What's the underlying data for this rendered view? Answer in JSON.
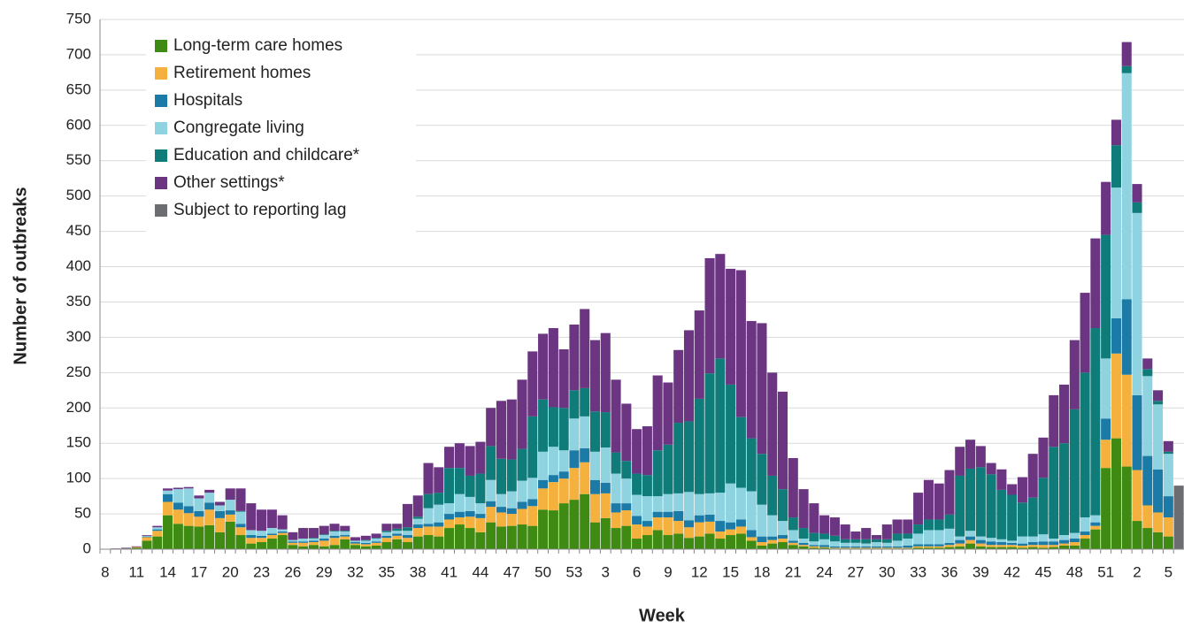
{
  "chart_data": {
    "type": "stacked_bar",
    "x_label": "Week",
    "y_label": "Number of outbreaks",
    "ylim": [
      0,
      750
    ],
    "yticks": [
      0,
      50,
      100,
      150,
      200,
      250,
      300,
      350,
      400,
      450,
      500,
      550,
      600,
      650,
      700,
      750
    ],
    "grid": true,
    "legend": "top-left",
    "categories": [
      "8",
      null,
      null,
      "11",
      null,
      null,
      "14",
      null,
      null,
      "17",
      null,
      null,
      "20",
      null,
      null,
      "23",
      null,
      null,
      "26",
      null,
      null,
      "29",
      null,
      null,
      "32",
      null,
      null,
      "35",
      null,
      null,
      "38",
      null,
      null,
      "41",
      null,
      null,
      "44",
      null,
      null,
      "47",
      null,
      null,
      "50",
      null,
      null,
      "53",
      null,
      null,
      "3",
      null,
      null,
      "6",
      null,
      null,
      "9",
      null,
      null,
      "12",
      null,
      null,
      "15",
      null,
      null,
      "18",
      null,
      null,
      "21",
      null,
      null,
      "24",
      null,
      null,
      "27",
      null,
      null,
      "30",
      null,
      null,
      "33",
      null,
      null,
      "36",
      null,
      null,
      "39",
      null,
      null,
      "42",
      null,
      null,
      "45",
      null,
      null,
      "48",
      null,
      null,
      "51",
      null,
      null,
      "2",
      null,
      null,
      "5",
      null
    ],
    "series": [
      {
        "name": "Long-term care homes",
        "color": "#3f8a12",
        "values": [
          0,
          0,
          1,
          2,
          12,
          18,
          48,
          36,
          33,
          32,
          34,
          24,
          39,
          20,
          8,
          10,
          15,
          20,
          6,
          4,
          6,
          4,
          6,
          14,
          6,
          4,
          5,
          10,
          14,
          10,
          18,
          20,
          18,
          30,
          35,
          30,
          24,
          38,
          32,
          33,
          35,
          33,
          56,
          55,
          65,
          70,
          78,
          38,
          44,
          30,
          33,
          15,
          20,
          27,
          20,
          22,
          16,
          18,
          22,
          15,
          20,
          22,
          12,
          5,
          8,
          10,
          6,
          4,
          2,
          2,
          1,
          1,
          1,
          1,
          1,
          1,
          1,
          1,
          2,
          2,
          2,
          3,
          4,
          8,
          4,
          3,
          3,
          3,
          2,
          3,
          2,
          3,
          5,
          5,
          15,
          28,
          115,
          157,
          117,
          40,
          30,
          24,
          18,
          null
        ]
      },
      {
        "name": "Retirement homes",
        "color": "#f5b13d",
        "values": [
          0,
          0,
          0,
          1,
          5,
          8,
          19,
          20,
          18,
          14,
          22,
          20,
          10,
          11,
          8,
          6,
          5,
          3,
          3,
          5,
          4,
          8,
          10,
          4,
          2,
          3,
          4,
          6,
          5,
          6,
          12,
          12,
          14,
          12,
          10,
          16,
          20,
          22,
          20,
          17,
          22,
          28,
          30,
          40,
          35,
          45,
          45,
          40,
          35,
          22,
          22,
          20,
          12,
          18,
          25,
          18,
          15,
          20,
          17,
          10,
          8,
          10,
          5,
          5,
          5,
          5,
          3,
          2,
          2,
          1,
          1,
          1,
          1,
          1,
          1,
          1,
          1,
          1,
          2,
          2,
          2,
          3,
          4,
          5,
          4,
          3,
          3,
          3,
          3,
          3,
          4,
          3,
          3,
          5,
          5,
          5,
          40,
          120,
          130,
          72,
          32,
          28,
          27,
          null
        ]
      },
      {
        "name": "Hospitals",
        "color": "#1b7aa6",
        "values": [
          0,
          0,
          0,
          0,
          1,
          2,
          11,
          10,
          10,
          8,
          10,
          10,
          6,
          5,
          4,
          3,
          2,
          2,
          2,
          2,
          2,
          3,
          3,
          2,
          2,
          2,
          2,
          3,
          3,
          4,
          5,
          4,
          6,
          8,
          8,
          8,
          6,
          8,
          8,
          8,
          10,
          10,
          12,
          10,
          10,
          25,
          20,
          20,
          15,
          13,
          10,
          12,
          8,
          8,
          8,
          14,
          10,
          10,
          10,
          15,
          10,
          10,
          10,
          8,
          5,
          5,
          3,
          3,
          2,
          3,
          2,
          2,
          2,
          2,
          2,
          2,
          2,
          3,
          3,
          3,
          3,
          3,
          5,
          5,
          5,
          5,
          4,
          3,
          3,
          4,
          5,
          5,
          5,
          5,
          5,
          5,
          30,
          50,
          107,
          106,
          70,
          61,
          30,
          null
        ]
      },
      {
        "name": "Congregate living",
        "color": "#8fd3e1",
        "values": [
          0,
          0,
          0,
          0,
          1,
          3,
          5,
          19,
          25,
          18,
          14,
          8,
          15,
          17,
          7,
          7,
          8,
          3,
          2,
          4,
          3,
          5,
          6,
          5,
          2,
          3,
          4,
          5,
          4,
          6,
          8,
          22,
          25,
          15,
          25,
          20,
          15,
          30,
          18,
          24,
          30,
          30,
          40,
          40,
          30,
          45,
          45,
          40,
          50,
          42,
          35,
          30,
          35,
          22,
          25,
          25,
          40,
          30,
          30,
          40,
          55,
          45,
          55,
          45,
          30,
          20,
          15,
          6,
          5,
          8,
          7,
          5,
          5,
          4,
          6,
          5,
          8,
          10,
          15,
          20,
          20,
          20,
          5,
          8,
          5,
          5,
          4,
          3,
          10,
          8,
          10,
          4,
          7,
          8,
          20,
          10,
          85,
          185,
          320,
          258,
          113,
          92,
          60,
          null
        ]
      },
      {
        "name": "Education and childcare*",
        "color": "#0f7c7a",
        "values": [
          0,
          0,
          0,
          0,
          0,
          0,
          0,
          0,
          0,
          0,
          0,
          0,
          0,
          1,
          0,
          0,
          0,
          0,
          0,
          0,
          1,
          1,
          1,
          1,
          0,
          1,
          1,
          2,
          3,
          5,
          3,
          20,
          17,
          50,
          37,
          30,
          42,
          48,
          50,
          45,
          45,
          87,
          74,
          56,
          60,
          40,
          40,
          57,
          50,
          30,
          25,
          30,
          30,
          65,
          70,
          100,
          100,
          135,
          170,
          190,
          140,
          100,
          75,
          72,
          56,
          45,
          18,
          15,
          12,
          8,
          8,
          5,
          5,
          6,
          4,
          5,
          10,
          7,
          13,
          15,
          15,
          20,
          86,
          88,
          98,
          90,
          70,
          65,
          48,
          55,
          80,
          130,
          130,
          175,
          205,
          265,
          175,
          60,
          10,
          15,
          10,
          5,
          3,
          null
        ]
      },
      {
        "name": "Other settings*",
        "color": "#6b3582",
        "values": [
          0,
          1,
          1,
          1,
          1,
          2,
          3,
          2,
          2,
          4,
          4,
          5,
          16,
          32,
          38,
          30,
          26,
          20,
          11,
          15,
          14,
          12,
          10,
          7,
          5,
          6,
          6,
          10,
          7,
          33,
          30,
          44,
          36,
          30,
          35,
          42,
          45,
          54,
          82,
          85,
          98,
          92,
          93,
          112,
          83,
          93,
          112,
          101,
          112,
          103,
          81,
          63,
          69,
          106,
          88,
          103,
          129,
          125,
          163,
          148,
          164,
          208,
          166,
          185,
          146,
          138,
          84,
          55,
          42,
          26,
          26,
          21,
          11,
          16,
          6,
          21,
          20,
          20,
          45,
          56,
          51,
          63,
          41,
          41,
          30,
          16,
          29,
          15,
          36,
          62,
          57,
          73,
          83,
          98,
          113,
          127,
          75,
          36,
          34,
          26,
          15,
          15,
          15,
          null
        ]
      },
      {
        "name": "Subject to reporting lag",
        "color": "#6b6d70",
        "values": [
          null,
          null,
          null,
          null,
          null,
          null,
          null,
          null,
          null,
          null,
          null,
          null,
          null,
          null,
          null,
          null,
          null,
          null,
          null,
          null,
          null,
          null,
          null,
          null,
          null,
          null,
          null,
          null,
          null,
          null,
          null,
          null,
          null,
          null,
          null,
          null,
          null,
          null,
          null,
          null,
          null,
          null,
          null,
          null,
          null,
          null,
          null,
          null,
          null,
          null,
          null,
          null,
          null,
          null,
          null,
          null,
          null,
          null,
          null,
          null,
          null,
          null,
          null,
          null,
          null,
          null,
          null,
          null,
          null,
          null,
          null,
          null,
          null,
          null,
          null,
          null,
          null,
          null,
          null,
          null,
          null,
          null,
          null,
          null,
          null,
          null,
          null,
          null,
          null,
          null,
          null,
          null,
          null,
          null,
          null,
          null,
          null,
          null,
          null,
          null,
          null,
          null,
          null,
          90
        ]
      }
    ]
  }
}
